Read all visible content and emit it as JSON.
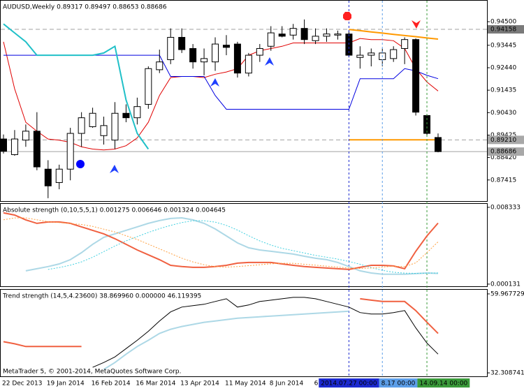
{
  "chart_data": [
    {
      "type": "candlestick",
      "title": "AUDUSD,Weekly  0.89317 0.89497 0.88653 0.88686",
      "categories": [
        "22 Dec 2013",
        null,
        null,
        null,
        "19 Jan 2014",
        null,
        null,
        null,
        "16 Feb 2014",
        null,
        null,
        null,
        "16 Mar 2014",
        null,
        null,
        null,
        "13 Apr 2014",
        null,
        null,
        null,
        "11 May 2014",
        null,
        null,
        null,
        "8 Jun 2014",
        null,
        null,
        null,
        "6",
        null,
        null,
        null,
        null,
        null,
        null,
        null,
        null,
        null,
        null,
        null
      ],
      "open": [
        0.8925,
        0.8855,
        0.892,
        0.896,
        0.879,
        0.873,
        0.879,
        0.895,
        0.898,
        0.894,
        0.892,
        0.904,
        0.902,
        0.908,
        0.9235,
        0.928,
        0.938,
        0.933,
        0.927,
        0.927,
        0.9345,
        0.935,
        0.922,
        0.93,
        0.934,
        0.9395,
        0.939,
        0.942,
        0.9365,
        0.9385,
        0.939,
        0.9395,
        0.929,
        0.93,
        0.928,
        0.9285,
        0.933,
        0.937,
        0.903,
        0.89317
      ],
      "high": [
        0.8945,
        0.8965,
        0.899,
        0.9045,
        0.883,
        0.881,
        0.8975,
        0.9045,
        0.9065,
        0.9025,
        0.909,
        0.908,
        0.911,
        0.925,
        0.9325,
        0.942,
        0.942,
        0.935,
        0.933,
        0.938,
        0.939,
        0.936,
        0.931,
        0.935,
        0.943,
        0.943,
        0.944,
        0.946,
        0.942,
        0.942,
        0.941,
        0.941,
        0.934,
        0.933,
        0.933,
        0.934,
        0.938,
        0.9375,
        0.9035,
        0.89497
      ],
      "low": [
        0.886,
        0.885,
        0.889,
        0.8785,
        0.866,
        0.87,
        0.874,
        0.889,
        0.8975,
        0.89,
        0.888,
        0.9,
        0.899,
        0.906,
        0.922,
        0.926,
        0.931,
        0.924,
        0.921,
        0.923,
        0.93,
        0.92,
        0.9205,
        0.927,
        0.932,
        0.938,
        0.937,
        0.935,
        0.935,
        0.936,
        0.937,
        0.929,
        0.924,
        0.925,
        0.925,
        0.927,
        0.926,
        0.903,
        0.894,
        0.88653
      ],
      "close": [
        0.887,
        0.8925,
        0.896,
        0.88,
        0.8715,
        0.879,
        0.895,
        0.902,
        0.904,
        0.8985,
        0.904,
        0.902,
        0.907,
        0.924,
        0.927,
        0.938,
        0.9325,
        0.927,
        0.9285,
        0.935,
        0.9335,
        0.922,
        0.93,
        0.933,
        0.94,
        0.9385,
        0.942,
        0.937,
        0.9385,
        0.9395,
        0.9395,
        0.93,
        0.93,
        0.931,
        0.931,
        0.9325,
        0.937,
        0.9045,
        0.895,
        0.88686
      ],
      "up_color": "#ffffff",
      "down_color": "#000000",
      "overlays": [
        {
          "color": "#e00000",
          "width": 1,
          "values": [
            0.936,
            0.915,
            0.9,
            0.896,
            0.8925,
            0.892,
            0.891,
            0.889,
            0.888,
            0.8876,
            0.888,
            0.8895,
            0.893,
            0.9,
            0.912,
            0.92,
            0.9205,
            0.9205,
            0.92,
            0.9215,
            0.9225,
            0.924,
            0.93,
            0.932,
            0.933,
            0.934,
            0.9355,
            0.9355,
            0.9355,
            0.9355,
            0.9355,
            0.9355,
            0.9375,
            0.937,
            0.937,
            0.9365,
            0.933,
            0.924,
            0.918,
            0.914
          ]
        },
        {
          "color": "#0000e0",
          "width": 1,
          "values": [
            0.93,
            0.93,
            0.93,
            0.93,
            0.93,
            0.93,
            0.93,
            0.93,
            0.93,
            0.93,
            0.93,
            0.93,
            0.93,
            0.93,
            0.93,
            0.9205,
            0.9205,
            0.9205,
            0.9205,
            0.912,
            0.9058,
            0.9058,
            0.9058,
            0.9058,
            0.9058,
            0.9058,
            0.9058,
            0.9058,
            0.9058,
            0.9058,
            0.9058,
            0.9058,
            0.9195,
            0.9195,
            0.9195,
            0.9195,
            0.924,
            0.923,
            0.921,
            0.9195
          ]
        },
        {
          "color": "#20c0c8",
          "width": 2,
          "values": [
            0.944,
            0.94,
            0.936,
            0.93,
            0.93,
            0.93,
            0.93,
            0.93,
            0.93,
            0.931,
            0.934,
            0.91,
            0.895,
            0.888,
            null,
            null,
            null,
            null,
            null,
            null,
            null,
            null,
            null,
            null,
            null,
            null,
            null,
            null,
            null,
            null,
            null,
            null,
            null,
            null,
            null,
            null,
            null,
            null,
            null,
            null
          ]
        },
        {
          "color": "#ff9900",
          "width": 2,
          "values": [
            null,
            null,
            null,
            null,
            null,
            null,
            null,
            null,
            null,
            null,
            null,
            null,
            null,
            null,
            null,
            null,
            null,
            null,
            null,
            null,
            null,
            null,
            null,
            null,
            null,
            null,
            null,
            null,
            null,
            null,
            null,
            0.8921,
            0.8921,
            0.8921,
            0.8921,
            0.8921,
            0.8921,
            0.8921,
            0.8921,
            0.8921
          ]
        },
        {
          "color": "#ff9900",
          "width": 2,
          "values": [
            null,
            null,
            null,
            null,
            null,
            null,
            null,
            null,
            null,
            null,
            null,
            null,
            null,
            null,
            null,
            null,
            null,
            null,
            null,
            null,
            null,
            null,
            null,
            null,
            null,
            null,
            null,
            null,
            null,
            null,
            null,
            0.9415,
            0.941,
            0.9404,
            0.9399,
            0.9393,
            0.9388,
            0.9383,
            0.9377,
            0.9372
          ]
        }
      ],
      "price_labels": [
        {
          "value": 0.94158,
          "color": "#7a7a7a"
        },
        {
          "value": 0.8921,
          "label": "0.89210",
          "color": "#a8a8a8"
        },
        {
          "value": 0.88686,
          "color": "#a8a8a8"
        }
      ],
      "crosshairs": [
        {
          "category": 31,
          "label": "2014.07.27 00:00",
          "color": "#1c2ad0"
        },
        {
          "category": 34,
          "label": "8.17 00:00",
          "color": "#5c9ee8"
        },
        {
          "category": 38,
          "label": "14.09.14 00:00",
          "color": "#3a9a3a"
        }
      ],
      "ylim": [
        0.8647,
        0.9544
      ],
      "yticks": [
        {
          "value": 0.945,
          "label": "0.94500"
        },
        0.93445,
        {
          "value": 0.9244,
          "label": "0.92440"
        },
        0.91435,
        {
          "value": 0.9043,
          "label": "0.90430"
        },
        0.89425,
        {
          "value": 0.8842,
          "label": "0.88420"
        },
        0.87415
      ]
    },
    {
      "type": "line",
      "title": "Absolute strength (0,10,5,5,1) 0.001275 0.006646 0.001324 0.004645",
      "series": [
        {
          "color": "#add8e6",
          "width": 2,
          "values": [
            null,
            null,
            0.00155,
            0.00177,
            0.002,
            0.00229,
            0.00274,
            0.00349,
            0.00438,
            0.00513,
            0.0055,
            0.00587,
            0.00625,
            0.00662,
            0.00692,
            0.00714,
            0.00721,
            0.00699,
            0.00662,
            0.00602,
            0.00528,
            0.00453,
            0.00401,
            0.00378,
            0.00364,
            0.00349,
            0.00334,
            0.00311,
            0.00289,
            0.00274,
            0.00244,
            0.002,
            0.00155,
            0.00132,
            0.00118,
            0.00118,
            0.00118,
            0.00125,
            0.00132,
            0.001275
          ]
        },
        {
          "color": "#f06040",
          "width": 2,
          "values": [
            0.00774,
            0.00751,
            0.00699,
            0.00662,
            0.00677,
            0.00677,
            0.00662,
            0.00625,
            0.00587,
            0.0055,
            0.00498,
            0.00438,
            0.00378,
            0.00326,
            0.00274,
            0.00214,
            0.002,
            0.00192,
            0.00192,
            0.002,
            0.00214,
            0.00237,
            0.00244,
            0.00244,
            0.00244,
            0.00229,
            0.00214,
            0.002,
            0.00192,
            0.00185,
            0.00177,
            0.0017,
            0.00192,
            0.00214,
            0.00214,
            0.00207,
            0.00177,
            0.00364,
            0.00528,
            0.006646
          ]
        },
        {
          "color": "#40d0e0",
          "width": 1,
          "dash": "2,2",
          "values": [
            null,
            null,
            null,
            null,
            0.0017,
            0.0019,
            0.00215,
            0.0025,
            0.003,
            0.0036,
            0.0042,
            0.00475,
            0.0052,
            0.00565,
            0.00605,
            0.0064,
            0.0067,
            0.0069,
            0.0069,
            0.00675,
            0.0064,
            0.0059,
            0.0053,
            0.00475,
            0.0043,
            0.00395,
            0.0037,
            0.00345,
            0.0032,
            0.003,
            0.0028,
            0.00255,
            0.00225,
            0.0019,
            0.0016,
            0.0014,
            0.0013,
            0.00128,
            0.0013,
            0.001324
          ]
        },
        {
          "color": "#ffa040",
          "width": 1,
          "dash": "2,2",
          "values": [
            0.007,
            0.0072,
            0.0072,
            0.007,
            0.0068,
            0.0067,
            0.0066,
            0.0065,
            0.0063,
            0.006,
            0.0057,
            0.0053,
            0.0049,
            0.0044,
            0.0039,
            0.0034,
            0.0029,
            0.0025,
            0.0022,
            0.002,
            0.00195,
            0.002,
            0.0021,
            0.0022,
            0.0023,
            0.00235,
            0.00235,
            0.00225,
            0.00215,
            0.00205,
            0.00195,
            0.00185,
            0.0018,
            0.00185,
            0.00195,
            0.00205,
            0.002,
            0.0024,
            0.0035,
            0.004645
          ]
        }
      ],
      "ylim": [
        -0.0001,
        0.0087
      ],
      "yticks": [
        0.008333,
        0.000131
      ]
    },
    {
      "type": "line",
      "title": "Trend strength (14,5,4.23600) 38.869960 0.000000 46.119395",
      "footer": "MetaTrader 5, © 2001-2014, MetaQuotes Software Corp.",
      "series": [
        {
          "color": "#000000",
          "width": 1,
          "values": [
            null,
            null,
            null,
            null,
            null,
            null,
            null,
            null,
            34.25,
            35.95,
            37.89,
            40.8,
            43.71,
            46.87,
            50.5,
            53.66,
            55.36,
            55.84,
            56.33,
            57.3,
            58.27,
            55.36,
            56.09,
            57.3,
            57.78,
            58.27,
            58.75,
            58.75,
            58.27,
            57.3,
            56.33,
            55.36,
            53.42,
            52.93,
            52.93,
            53.42,
            54.14,
            48.08,
            42.74,
            38.86996
          ]
        },
        {
          "color": "#add8e6",
          "width": 2,
          "values": [
            null,
            null,
            null,
            null,
            null,
            null,
            null,
            null,
            null,
            33.52,
            35.95,
            38.86,
            41.53,
            43.71,
            46.14,
            47.59,
            48.56,
            49.29,
            50.02,
            50.5,
            50.99,
            51.48,
            51.72,
            51.96,
            52.2,
            52.45,
            52.69,
            52.93,
            53.17,
            53.42,
            53.66,
            53.9,
            null,
            null,
            null,
            null,
            null,
            null,
            null,
            null
          ]
        },
        {
          "color": "#f06040",
          "width": 2,
          "values": [
            43.23,
            42.5,
            41.53,
            41.53,
            41.53,
            41.53,
            41.53,
            41.53,
            null,
            null,
            null,
            null,
            null,
            null,
            null,
            null,
            null,
            null,
            null,
            null,
            null,
            null,
            null,
            null,
            null,
            null,
            null,
            null,
            null,
            null,
            null,
            null,
            58.27,
            57.78,
            57.3,
            57.3,
            57.3,
            54.14,
            50.02,
            46.119395
          ]
        }
      ],
      "ylim": [
        31.1,
        61.42
      ],
      "yticks": [
        59.967729,
        32.308741
      ]
    }
  ]
}
